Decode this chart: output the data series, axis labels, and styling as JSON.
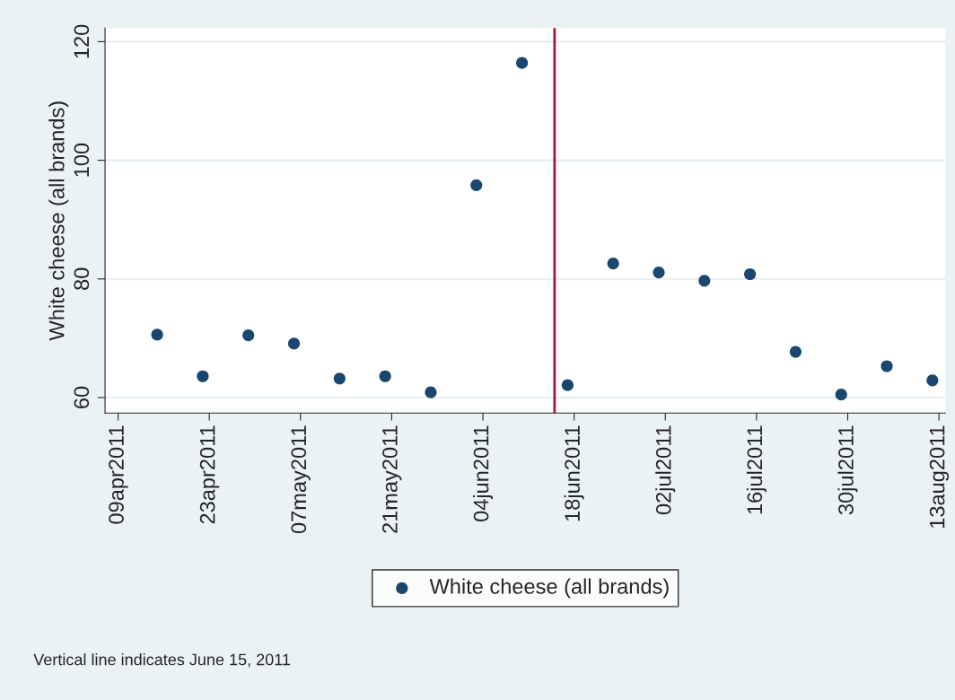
{
  "chart_data": {
    "type": "scatter",
    "ylabel": "White cheese (all brands)",
    "x": [
      "2011-04-15",
      "2011-04-22",
      "2011-04-29",
      "2011-05-06",
      "2011-05-13",
      "2011-05-20",
      "2011-05-27",
      "2011-06-03",
      "2011-06-10",
      "2011-06-17",
      "2011-06-24",
      "2011-07-01",
      "2011-07-08",
      "2011-07-15",
      "2011-07-22",
      "2011-07-29",
      "2011-08-05",
      "2011-08-12"
    ],
    "series": [
      {
        "name": "White cheese (all brands)",
        "color": "#1a476f",
        "values": [
          70.6,
          63.6,
          70.5,
          69.1,
          63.2,
          63.6,
          60.9,
          95.8,
          116.4,
          62.1,
          82.6,
          81.1,
          79.7,
          80.8,
          67.7,
          60.5,
          65.3,
          62.9
        ]
      }
    ],
    "xlim": [
      "2011-04-07",
      "2011-08-14"
    ],
    "xticks": [
      {
        "value": "2011-04-09",
        "label": "09apr2011"
      },
      {
        "value": "2011-04-23",
        "label": "23apr2011"
      },
      {
        "value": "2011-05-07",
        "label": "07may2011"
      },
      {
        "value": "2011-05-21",
        "label": "21may2011"
      },
      {
        "value": "2011-06-04",
        "label": "04jun2011"
      },
      {
        "value": "2011-06-18",
        "label": "18jun2011"
      },
      {
        "value": "2011-07-02",
        "label": "02jul2011"
      },
      {
        "value": "2011-07-16",
        "label": "16jul2011"
      },
      {
        "value": "2011-07-30",
        "label": "30jul2011"
      },
      {
        "value": "2011-08-13",
        "label": "13aug2011"
      }
    ],
    "ylim": [
      57.4,
      122.3
    ],
    "yticks": [
      60,
      80,
      100,
      120
    ],
    "ref_lines": [
      {
        "axis": "x",
        "value": "2011-06-15",
        "color": "#a6193c"
      }
    ],
    "annotations": [
      "Vertical line indicates June 15, 2011"
    ],
    "grid": "y",
    "legend": "bottom",
    "marker": "circle"
  }
}
